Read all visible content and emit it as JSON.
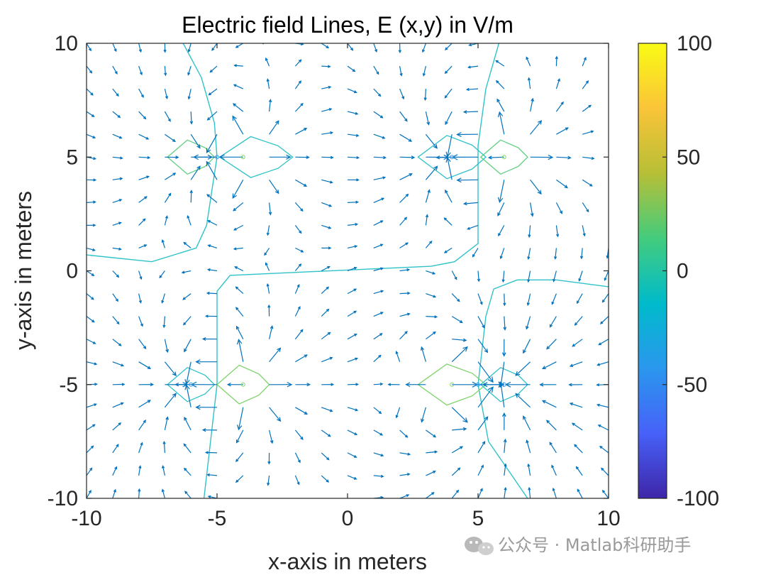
{
  "chart_data": {
    "type": "quiver",
    "title": "Electric field Lines, E (x,y) in V/m",
    "xlabel": "x-axis in meters",
    "ylabel": "y-axis in meters",
    "xlim": [
      -10,
      10
    ],
    "ylim": [
      -10,
      10
    ],
    "xticks": [
      -10,
      -5,
      0,
      5,
      10
    ],
    "yticks": [
      -10,
      -5,
      0,
      5,
      10
    ],
    "x_tick_labels": [
      "-10",
      "-5",
      "0",
      "5",
      "10"
    ],
    "y_tick_labels": [
      "-10",
      "-5",
      "0",
      "5",
      "10"
    ],
    "grid": false,
    "vector_color": "#0072BD",
    "charges": [
      {
        "x": -5,
        "y": 5,
        "q": -1
      },
      {
        "x": -4,
        "y": 5,
        "q": 1
      },
      {
        "x": 4,
        "y": 5,
        "q": -1
      },
      {
        "x": 6,
        "y": 5,
        "q": 1
      },
      {
        "x": -6,
        "y": -5,
        "q": -1
      },
      {
        "x": -4,
        "y": -5,
        "q": 1
      },
      {
        "x": 4,
        "y": -5,
        "q": 1
      },
      {
        "x": 5,
        "y": -5,
        "q": -1
      },
      {
        "x": 6,
        "y": -5,
        "q": -1
      }
    ],
    "zero_contours": [
      [
        [
          -6.3,
          10
        ],
        [
          -5.6,
          8.5
        ],
        [
          -5.1,
          6.5
        ],
        [
          -5.0,
          5
        ],
        [
          -5.2,
          3.5
        ],
        [
          -5.4,
          2
        ],
        [
          -5.8,
          1.0
        ],
        [
          -7.5,
          0.4
        ],
        [
          -10,
          0.7
        ]
      ],
      [
        [
          -5.5,
          -10
        ],
        [
          -5.3,
          -8
        ],
        [
          -5.1,
          -6
        ],
        [
          -5.0,
          -5
        ],
        [
          -5.0,
          -2
        ],
        [
          -5.0,
          -0.9
        ],
        [
          -4.5,
          -0.2
        ],
        [
          3.2,
          0.2
        ],
        [
          4.1,
          0.4
        ],
        [
          5.0,
          1.2
        ],
        [
          5.0,
          3
        ],
        [
          5.0,
          5.5
        ],
        [
          5.3,
          8
        ],
        [
          5.8,
          10
        ]
      ],
      [
        [
          10,
          -0.7
        ],
        [
          8,
          -0.4
        ],
        [
          6.5,
          -0.4
        ],
        [
          5.6,
          -0.8
        ],
        [
          5.3,
          -2
        ],
        [
          5.0,
          -5
        ],
        [
          5.4,
          -7.5
        ],
        [
          6.0,
          -8.5
        ],
        [
          6.9,
          -10
        ]
      ]
    ],
    "equipotential_loops": [
      {
        "cx": -6.0,
        "cy": 5,
        "rx": 0.9,
        "ry": 0.75,
        "color": "#5fcf7f"
      },
      {
        "cx": -3.5,
        "cy": 5,
        "rx": 1.4,
        "ry": 0.9,
        "color": "#2fc2c9"
      },
      {
        "cx": 4.0,
        "cy": 5,
        "rx": 1.3,
        "ry": 0.95,
        "color": "#2fc2c9"
      },
      {
        "cx": 6.0,
        "cy": 5,
        "rx": 0.9,
        "ry": 0.75,
        "color": "#5fcf7f"
      },
      {
        "cx": -6.0,
        "cy": -5,
        "rx": 0.9,
        "ry": 0.75,
        "color": "#2fc2c9"
      },
      {
        "cx": -4.0,
        "cy": -5,
        "rx": 1.0,
        "ry": 0.85,
        "color": "#7fd36b"
      },
      {
        "cx": 4.0,
        "cy": -5,
        "rx": 1.3,
        "ry": 0.9,
        "color": "#7fd36b"
      },
      {
        "cx": 6.0,
        "cy": -5,
        "rx": 0.9,
        "ry": 0.75,
        "color": "#2fc2c9"
      }
    ],
    "colorbar": {
      "limits": [
        -100,
        100
      ],
      "ticks": [
        100,
        50,
        0,
        -50,
        -100
      ],
      "tick_labels": [
        "100",
        "50",
        "0",
        "-50",
        "-100"
      ],
      "colormap": "parula",
      "colormap_stops": [
        "#3e26a8",
        "#4761f8",
        "#2a97ee",
        "#00bbcb",
        "#43cc7d",
        "#b7bf36",
        "#fac438",
        "#f9fb15"
      ]
    }
  },
  "watermark": {
    "text": "公众号 · Matlab科研助手",
    "icon": "wechat-icon"
  }
}
